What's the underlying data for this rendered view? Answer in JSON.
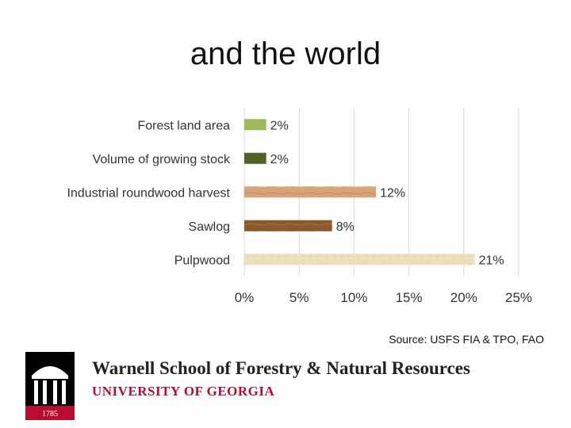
{
  "slide": {
    "title": "and the world",
    "source": "Source: USFS FIA & TPO, FAO"
  },
  "branding": {
    "school": "Warnell School of Forestry & Natural Resources",
    "university": "UNIVERSITY OF GEORGIA",
    "seal_year": "1785",
    "colors": {
      "red": "#ba0c2f",
      "black": "#000000"
    }
  },
  "chart_data": {
    "type": "bar",
    "orientation": "horizontal",
    "categories": [
      "Forest land area",
      "Volume of growing stock",
      "Industrial roundwood harvest",
      "Sawlog",
      "Pulpwood"
    ],
    "values": [
      2,
      2,
      12,
      8,
      21
    ],
    "value_labels": [
      "2%",
      "2%",
      "12%",
      "8%",
      "21%"
    ],
    "colors": [
      "#9bbb59",
      "#4f6228",
      "#d39c6e",
      "#8b5a2b",
      "#eadcb6"
    ],
    "xlim": [
      0,
      25
    ],
    "x_ticks": [
      0,
      5,
      10,
      15,
      20,
      25
    ],
    "x_tick_labels": [
      "0%",
      "5%",
      "10%",
      "15%",
      "20%",
      "25%"
    ],
    "grid": true,
    "legend": "none"
  }
}
